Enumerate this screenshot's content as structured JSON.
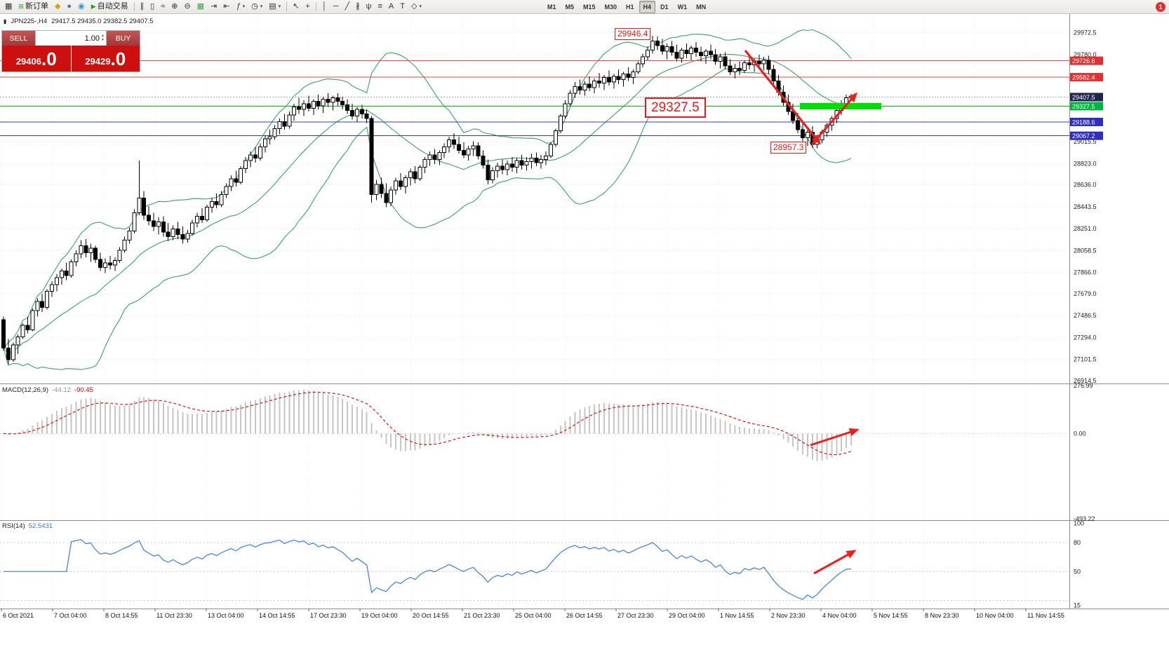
{
  "icons": {
    "chart_window": "▦",
    "chart_small": "▮",
    "new_order": "⊞",
    "mql5": "◆",
    "profile": "●",
    "community": "◉",
    "autotrade_play": "▶",
    "chart_bars": "∥",
    "chart_candles": "▯",
    "chart_line": "≈",
    "zoom_in": "⊕",
    "zoom_out": "⊖",
    "tile_windows": "▦",
    "auto_scroll": "⇥",
    "chart_shift": "⇤",
    "indicators": "ƒ",
    "periods": "◷",
    "templates": "▤",
    "cursor": "↖",
    "crosshair": "+",
    "vline": "│",
    "hline": "─",
    "trendline": "╱",
    "channel": "∦",
    "pitchfork": "ψ",
    "fibonacci": "≡",
    "text": "A",
    "label": "T",
    "shapes": "◇",
    "caret": "▾",
    "spinner_up": "▲",
    "spinner_down": "▼"
  },
  "toolbar": {
    "new_order_label": "新订单",
    "autotrade_label": "自动交易",
    "timeframes": [
      "M1",
      "M5",
      "M15",
      "M30",
      "H1",
      "H4",
      "D1",
      "W1",
      "MN"
    ],
    "active_timeframe": "H4",
    "badge_count": "1"
  },
  "chart_header": {
    "symbol_title": "JPN225-,H4",
    "ohlc": "29417.5 29435.0 29382.5 29407.5"
  },
  "trade_panel": {
    "sell_label": "SELL",
    "buy_label": "BUY",
    "volume": "1.00",
    "sell_price_main": "29406",
    "sell_price_big": ".0",
    "buy_price_main": "29429",
    "buy_price_big": ".0"
  },
  "indicator_labels": {
    "macd_name": "MACD(12,26,9)",
    "macd_v1": "-44.12",
    "macd_v2": "-90.45",
    "rsi_name": "RSI(14)",
    "rsi_value": "52.5431"
  },
  "chart_data": {
    "type": "candlestick",
    "symbol": "JPN225-",
    "timeframe": "H4",
    "price_range": [
      26890,
      30125
    ],
    "band_color": "#3aa06a",
    "annotation_color": "#e82020",
    "highlight_color": "#00dd00",
    "rsi_color": "#4a86d8",
    "price_axis_labels": [
      "29972.5",
      "29780.0",
      "29015.5",
      "28823.0",
      "28636.0",
      "28443.5",
      "28251.0",
      "28058.5",
      "27866.0",
      "27679.0",
      "27486.5",
      "27294.0",
      "27101.5",
      "26914.5"
    ],
    "level_lines": [
      {
        "price": 29726.6,
        "label": "29726.6",
        "color": "#f24040",
        "label_bg": "#e03030"
      },
      {
        "price": 29582.4,
        "label": "29582.4",
        "color": "#f24040",
        "label_bg": "#e03030"
      },
      {
        "price": 29407.5,
        "label": "29407.5",
        "color": "#999999",
        "label_bg": "#23234f",
        "style": "current"
      },
      {
        "price": 29327.5,
        "label": "29327.5",
        "color": "#00c000",
        "label_bg": "#00b43c"
      },
      {
        "price": 29188.6,
        "label": "29188.6",
        "color": "#3434cc",
        "label_bg": "#2d2dc0"
      },
      {
        "price": 29067.2,
        "label": "29067.2",
        "color": "#3434cc",
        "label_bg": "#2d2dc0"
      }
    ],
    "annotations": {
      "high_label": "29946.4",
      "mid_label": "29327.5",
      "low_label": "28957.3"
    },
    "macd": {
      "range": [
        -493.22,
        276.99
      ],
      "axis_labels": [
        "276.99",
        "0.00",
        "-493.22"
      ]
    },
    "rsi": {
      "axis_labels": [
        "100",
        "80",
        "50",
        "15"
      ],
      "levels": [
        80,
        50,
        20
      ]
    },
    "time_labels": [
      "6 Oct 2021",
      "7 Oct 04:00",
      "8 Oct 14:55",
      "11 Oct 23:30",
      "13 Oct 04:00",
      "14 Oct 14:55",
      "17 Oct 23:30",
      "19 Oct 04:00",
      "20 Oct 14:55",
      "21 Oct 23:30",
      "25 Oct 04:00",
      "26 Oct 14:55",
      "27 Oct 23:30",
      "29 Oct 04:00",
      "1 Nov 14:55",
      "2 Nov 23:30",
      "4 Nov 04:00",
      "5 Nov 14:55",
      "8 Nov 23:30",
      "10 Nov 04:00",
      "11 Nov 14:55"
    ],
    "candles": [
      [
        27450,
        27480,
        27180,
        27200
      ],
      [
        27200,
        27280,
        27060,
        27100
      ],
      [
        27100,
        27250,
        27080,
        27230
      ],
      [
        27230,
        27320,
        27150,
        27300
      ],
      [
        27300,
        27420,
        27280,
        27400
      ],
      [
        27400,
        27480,
        27330,
        27360
      ],
      [
        27360,
        27550,
        27350,
        27530
      ],
      [
        27530,
        27640,
        27480,
        27610
      ],
      [
        27610,
        27680,
        27520,
        27560
      ],
      [
        27560,
        27720,
        27540,
        27700
      ],
      [
        27700,
        27790,
        27650,
        27760
      ],
      [
        27760,
        27850,
        27700,
        27820
      ],
      [
        27820,
        27900,
        27760,
        27880
      ],
      [
        27880,
        27950,
        27800,
        27840
      ],
      [
        27840,
        27980,
        27820,
        27960
      ],
      [
        27960,
        28060,
        27920,
        28030
      ],
      [
        28030,
        28150,
        27990,
        28100
      ],
      [
        28100,
        28160,
        28000,
        28040
      ],
      [
        28040,
        28120,
        27960,
        28080
      ],
      [
        28080,
        28100,
        27950,
        27980
      ],
      [
        27980,
        28040,
        27880,
        27910
      ],
      [
        27910,
        27990,
        27860,
        27950
      ],
      [
        27950,
        28010,
        27890,
        27930
      ],
      [
        27930,
        28000,
        27880,
        27970
      ],
      [
        27970,
        28090,
        27950,
        28060
      ],
      [
        28060,
        28180,
        28040,
        28150
      ],
      [
        28150,
        28260,
        28120,
        28230
      ],
      [
        28230,
        28420,
        28210,
        28390
      ],
      [
        28390,
        28850,
        28370,
        28520
      ],
      [
        28520,
        28580,
        28330,
        28370
      ],
      [
        28370,
        28450,
        28280,
        28320
      ],
      [
        28320,
        28390,
        28230,
        28270
      ],
      [
        28270,
        28350,
        28200,
        28310
      ],
      [
        28310,
        28360,
        28180,
        28220
      ],
      [
        28220,
        28300,
        28140,
        28180
      ],
      [
        28180,
        28280,
        28150,
        28250
      ],
      [
        28250,
        28310,
        28160,
        28200
      ],
      [
        28200,
        28270,
        28120,
        28160
      ],
      [
        28160,
        28240,
        28130,
        28210
      ],
      [
        28210,
        28330,
        28190,
        28300
      ],
      [
        28300,
        28390,
        28260,
        28360
      ],
      [
        28360,
        28430,
        28300,
        28330
      ],
      [
        28330,
        28460,
        28310,
        28440
      ],
      [
        28440,
        28520,
        28390,
        28490
      ],
      [
        28490,
        28560,
        28430,
        28460
      ],
      [
        28460,
        28580,
        28440,
        28550
      ],
      [
        28550,
        28650,
        28520,
        28620
      ],
      [
        28620,
        28720,
        28580,
        28690
      ],
      [
        28690,
        28760,
        28620,
        28660
      ],
      [
        28660,
        28800,
        28640,
        28780
      ],
      [
        28780,
        28880,
        28740,
        28850
      ],
      [
        28850,
        28930,
        28790,
        28900
      ],
      [
        28900,
        28970,
        28830,
        28870
      ],
      [
        28870,
        29000,
        28850,
        28970
      ],
      [
        28970,
        29070,
        28920,
        29040
      ],
      [
        29040,
        29120,
        28990,
        29060
      ],
      [
        29060,
        29160,
        29030,
        29130
      ],
      [
        29130,
        29220,
        29080,
        29190
      ],
      [
        29190,
        29260,
        29120,
        29150
      ],
      [
        29150,
        29280,
        29130,
        29250
      ],
      [
        29250,
        29350,
        29200,
        29320
      ],
      [
        29320,
        29400,
        29260,
        29300
      ],
      [
        29300,
        29380,
        29240,
        29350
      ],
      [
        29350,
        29420,
        29280,
        29310
      ],
      [
        29310,
        29390,
        29250,
        29370
      ],
      [
        29370,
        29430,
        29300,
        29330
      ],
      [
        29330,
        29410,
        29270,
        29390
      ],
      [
        29390,
        29440,
        29320,
        29360
      ],
      [
        29360,
        29420,
        29290,
        29400
      ],
      [
        29400,
        29440,
        29330,
        29370
      ],
      [
        29370,
        29410,
        29300,
        29340
      ],
      [
        29340,
        29390,
        29260,
        29290
      ],
      [
        29290,
        29350,
        29210,
        29240
      ],
      [
        29240,
        29320,
        29190,
        29300
      ],
      [
        29300,
        29340,
        29220,
        29260
      ],
      [
        29260,
        29300,
        29180,
        29220
      ],
      [
        29220,
        29240,
        28480,
        28550
      ],
      [
        28550,
        28680,
        28500,
        28640
      ],
      [
        28640,
        28700,
        28520,
        28560
      ],
      [
        28560,
        28650,
        28440,
        28480
      ],
      [
        28480,
        28620,
        28450,
        28590
      ],
      [
        28590,
        28700,
        28550,
        28670
      ],
      [
        28670,
        28740,
        28590,
        28620
      ],
      [
        28620,
        28720,
        28560,
        28700
      ],
      [
        28700,
        28780,
        28630,
        28750
      ],
      [
        28750,
        28800,
        28650,
        28690
      ],
      [
        28690,
        28810,
        28670,
        28790
      ],
      [
        28790,
        28880,
        28740,
        28860
      ],
      [
        28860,
        28930,
        28800,
        28900
      ],
      [
        28900,
        28950,
        28820,
        28860
      ],
      [
        28860,
        28940,
        28810,
        28920
      ],
      [
        28920,
        29000,
        28870,
        28970
      ],
      [
        28970,
        29060,
        28920,
        29030
      ],
      [
        29030,
        29090,
        28950,
        28990
      ],
      [
        28990,
        29060,
        28910,
        28940
      ],
      [
        28940,
        29010,
        28870,
        28900
      ],
      [
        28900,
        28980,
        28850,
        28950
      ],
      [
        28950,
        29020,
        28890,
        28980
      ],
      [
        28980,
        29010,
        28860,
        28890
      ],
      [
        28890,
        28940,
        28780,
        28810
      ],
      [
        28810,
        28860,
        28640,
        28680
      ],
      [
        28680,
        28790,
        28650,
        28760
      ],
      [
        28760,
        28830,
        28700,
        28800
      ],
      [
        28800,
        28860,
        28730,
        28770
      ],
      [
        28770,
        28850,
        28720,
        28820
      ],
      [
        28820,
        28880,
        28750,
        28790
      ],
      [
        28790,
        28870,
        28740,
        28850
      ],
      [
        28850,
        28900,
        28770,
        28810
      ],
      [
        28810,
        28880,
        28760,
        28840
      ],
      [
        28840,
        28910,
        28780,
        28870
      ],
      [
        28870,
        28920,
        28800,
        28830
      ],
      [
        28830,
        28900,
        28780,
        28860
      ],
      [
        28860,
        28930,
        28810,
        28890
      ],
      [
        28890,
        29010,
        28870,
        28990
      ],
      [
        28990,
        29130,
        28970,
        29110
      ],
      [
        29110,
        29260,
        29090,
        29240
      ],
      [
        29240,
        29380,
        29220,
        29350
      ],
      [
        29350,
        29470,
        29330,
        29440
      ],
      [
        29440,
        29540,
        29400,
        29500
      ],
      [
        29500,
        29560,
        29430,
        29470
      ],
      [
        29470,
        29550,
        29420,
        29520
      ],
      [
        29520,
        29590,
        29460,
        29490
      ],
      [
        29490,
        29570,
        29440,
        29550
      ],
      [
        29550,
        29620,
        29490,
        29530
      ],
      [
        29530,
        29600,
        29470,
        29580
      ],
      [
        29580,
        29640,
        29510,
        29540
      ],
      [
        29540,
        29610,
        29480,
        29590
      ],
      [
        29590,
        29650,
        29520,
        29560
      ],
      [
        29560,
        29630,
        29500,
        29610
      ],
      [
        29610,
        29670,
        29550,
        29580
      ],
      [
        29580,
        29650,
        29520,
        29630
      ],
      [
        29630,
        29720,
        29610,
        29700
      ],
      [
        29700,
        29790,
        29670,
        29760
      ],
      [
        29760,
        29850,
        29730,
        29820
      ],
      [
        29820,
        29946.4,
        29790,
        29900
      ],
      [
        29900,
        29940,
        29820,
        29860
      ],
      [
        29860,
        29920,
        29780,
        29810
      ],
      [
        29810,
        29880,
        29740,
        29850
      ],
      [
        29850,
        29900,
        29770,
        29800
      ],
      [
        29800,
        29870,
        29720,
        29750
      ],
      [
        29750,
        29840,
        29710,
        29820
      ],
      [
        29820,
        29880,
        29750,
        29790
      ],
      [
        29790,
        29860,
        29730,
        29840
      ],
      [
        29840,
        29890,
        29760,
        29800
      ],
      [
        29800,
        29850,
        29720,
        29770
      ],
      [
        29770,
        29830,
        29700,
        29810
      ],
      [
        29810,
        29870,
        29740,
        29780
      ],
      [
        29780,
        29830,
        29690,
        29720
      ],
      [
        29720,
        29790,
        29660,
        29760
      ],
      [
        29760,
        29800,
        29650,
        29680
      ],
      [
        29680,
        29740,
        29600,
        29630
      ],
      [
        29630,
        29700,
        29570,
        29660
      ],
      [
        29660,
        29720,
        29600,
        29640
      ],
      [
        29640,
        29730,
        29620,
        29710
      ],
      [
        29710,
        29770,
        29650,
        29690
      ],
      [
        29690,
        29750,
        29630,
        29720
      ],
      [
        29720,
        29780,
        29660,
        29700
      ],
      [
        29700,
        29760,
        29640,
        29730
      ],
      [
        29730,
        29770,
        29610,
        29650
      ],
      [
        29650,
        29690,
        29520,
        29550
      ],
      [
        29550,
        29600,
        29420,
        29450
      ],
      [
        29450,
        29510,
        29330,
        29360
      ],
      [
        29360,
        29430,
        29250,
        29280
      ],
      [
        29280,
        29350,
        29170,
        29200
      ],
      [
        29200,
        29270,
        29090,
        29120
      ],
      [
        29120,
        29190,
        29020,
        29050
      ],
      [
        29050,
        29130,
        28980,
        29100
      ],
      [
        29100,
        29150,
        28960,
        28990
      ],
      [
        28990,
        29060,
        28957.3,
        29030
      ],
      [
        29030,
        29120,
        29000,
        29100
      ],
      [
        29100,
        29180,
        29060,
        29160
      ],
      [
        29160,
        29240,
        29110,
        29220
      ],
      [
        29220,
        29310,
        29180,
        29290
      ],
      [
        29290,
        29380,
        29250,
        29350
      ],
      [
        29350,
        29430,
        29310,
        29400
      ],
      [
        29417.5,
        29435,
        29382.5,
        29407.5
      ]
    ]
  }
}
